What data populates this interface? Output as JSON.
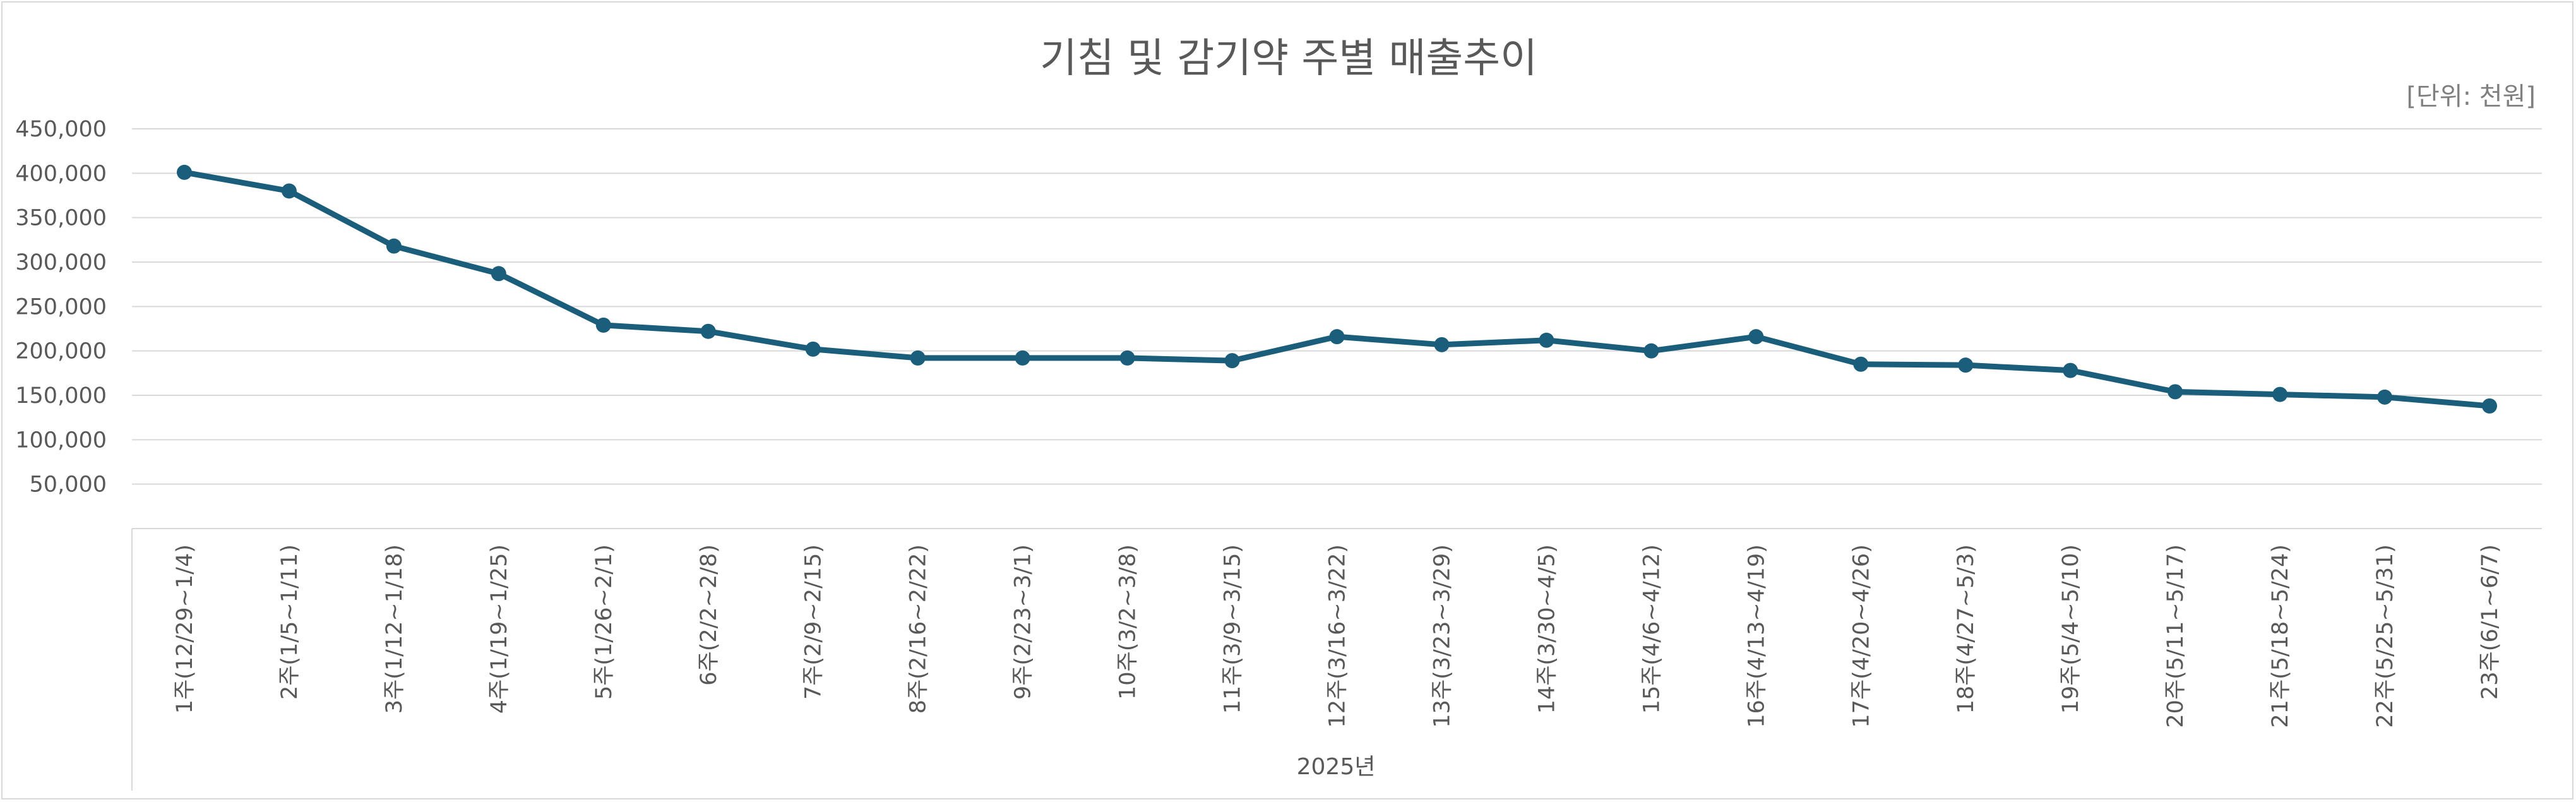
{
  "chart_data": {
    "type": "line",
    "title": "기침 및 감기약 주별 매출추이",
    "unit_note": "[단위: 천원]",
    "xlabel": "2025년",
    "ylabel": "",
    "ylim": [
      0,
      450000
    ],
    "ytick_labels": [
      "450,000",
      "400,000",
      "350,000",
      "300,000",
      "250,000",
      "200,000",
      "150,000",
      "100,000",
      "50,000"
    ],
    "ytick_values": [
      450000,
      400000,
      350000,
      300000,
      250000,
      200000,
      150000,
      100000,
      50000
    ],
    "grid": true,
    "legend": "none",
    "color": "#1b5e7b",
    "categories": [
      "1주(12/29~1/4)",
      "2주(1/5~1/11)",
      "3주(1/12~1/18)",
      "4주(1/19~1/25)",
      "5주(1/26~2/1)",
      "6주(2/2~2/8)",
      "7주(2/9~2/15)",
      "8주(2/16~2/22)",
      "9주(2/23~3/1)",
      "10주(3/2~3/8)",
      "11주(3/9~3/15)",
      "12주(3/16~3/22)",
      "13주(3/23~3/29)",
      "14주(3/30~4/5)",
      "15주(4/6~4/12)",
      "16주(4/13~4/19)",
      "17주(4/20~4/26)",
      "18주(4/27~5/3)",
      "19주(5/4~5/10)",
      "20주(5/11~5/17)",
      "21주(5/18~5/24)",
      "22주(5/25~5/31)",
      "23주(6/1~6/7)"
    ],
    "values": [
      401000,
      380000,
      318000,
      287000,
      229000,
      222000,
      202000,
      192000,
      192000,
      192000,
      189000,
      216000,
      207000,
      212000,
      200000,
      216000,
      185000,
      184000,
      178000,
      154000,
      151000,
      148000,
      138000
    ]
  }
}
